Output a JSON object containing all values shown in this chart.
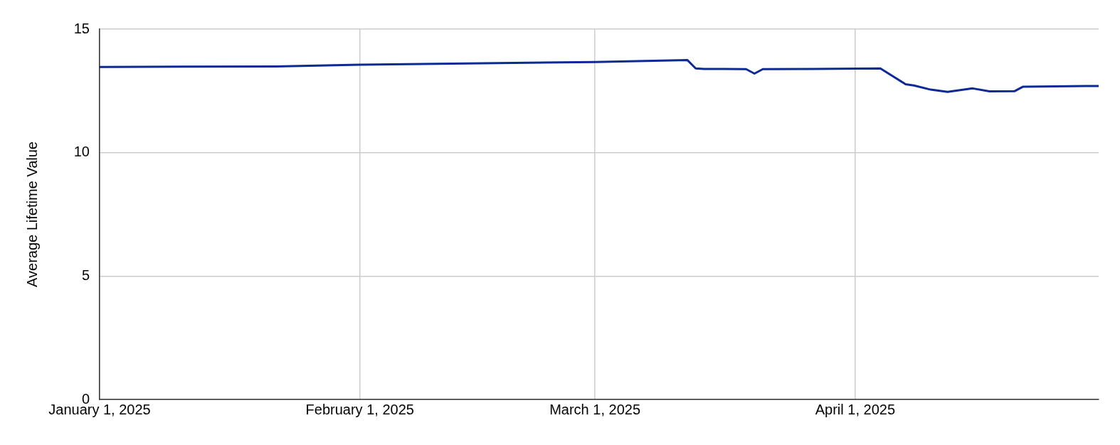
{
  "chart_data": {
    "type": "line",
    "ylabel": "Average Lifetime Value",
    "x": [
      "2025-01-01",
      "2025-01-22",
      "2025-02-01",
      "2025-03-01",
      "2025-03-12",
      "2025-03-13",
      "2025-03-14",
      "2025-03-19",
      "2025-03-20",
      "2025-03-21",
      "2025-03-27",
      "2025-04-04",
      "2025-04-07",
      "2025-04-08",
      "2025-04-10",
      "2025-04-12",
      "2025-04-15",
      "2025-04-17",
      "2025-04-20",
      "2025-04-21",
      "2025-04-30"
    ],
    "series": [
      {
        "color": "#0d2a94",
        "values": [
          13.47,
          13.49,
          13.56,
          13.67,
          13.75,
          13.41,
          13.39,
          13.38,
          13.2,
          13.38,
          13.39,
          13.41,
          12.77,
          12.72,
          12.55,
          12.46,
          12.6,
          12.48,
          12.49,
          12.67,
          12.7
        ]
      }
    ],
    "xlim": [
      "2025-01-01",
      "2025-04-30"
    ],
    "xticks": [
      {
        "value": "2025-01-01",
        "label": "January 1, 2025"
      },
      {
        "value": "2025-02-01",
        "label": "February 1, 2025"
      },
      {
        "value": "2025-03-01",
        "label": "March 1, 2025"
      },
      {
        "value": "2025-04-01",
        "label": "April 1, 2025"
      }
    ],
    "ylim": [
      0,
      15
    ],
    "yticks": [
      0,
      5,
      10,
      15
    ],
    "grid": true,
    "legend": false,
    "marker": "none",
    "line_style": "solid"
  }
}
